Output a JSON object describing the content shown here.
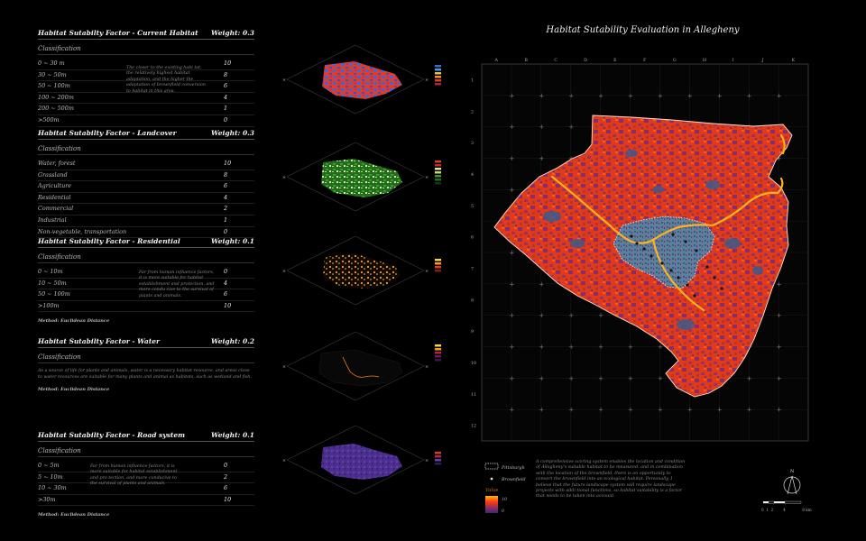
{
  "title": "Habitat Sutability Evaluation in Allegheny",
  "factors": [
    {
      "title": "Habitat Sutabilty Factor - Current Habitat",
      "weight": "Weight: 0.3",
      "classification": "Classification",
      "rows": [
        {
          "label": "0 ~ 30 m",
          "value": "10"
        },
        {
          "label": "30 ~ 50m",
          "value": "8"
        },
        {
          "label": "50 ~ 100m",
          "value": "6"
        },
        {
          "label": "100 ~ 200m",
          "value": "4"
        },
        {
          "label": "200 ~ 500m",
          "value": "1"
        },
        {
          "label": ">500m",
          "value": "0"
        }
      ],
      "description": "The closer to the existing habi tat, the relatively highest habitat adaptation, and the higher the adaptation of brownfield conversion to habitat in this area."
    },
    {
      "title": "Habitat Sutabilty Factor - Landcover",
      "weight": "Weight: 0.3",
      "classification": "Classification",
      "rows": [
        {
          "label": "Water, forest",
          "value": "10"
        },
        {
          "label": "Grassland",
          "value": "8"
        },
        {
          "label": "Agriculture",
          "value": "6"
        },
        {
          "label": "Residential",
          "value": "4"
        },
        {
          "label": "Commercial",
          "value": "2"
        },
        {
          "label": "Industrial",
          "value": "1"
        },
        {
          "label": "Non-vegetable, transportation",
          "value": "0"
        }
      ]
    },
    {
      "title": "Habitat Sutabilty Factor - Residential",
      "weight": "Weight: 0.1",
      "classification": "Classification",
      "rows": [
        {
          "label": "0 ~ 10m",
          "value": "0"
        },
        {
          "label": "10 ~ 50m",
          "value": "4"
        },
        {
          "label": "50 ~ 100m",
          "value": "6"
        },
        {
          "label": ">100m",
          "value": "10"
        }
      ],
      "description": "Far from human influence factors, it is more suitable for habitat establishment and protection, and more condu cive to the survival of plants and animals.",
      "method": "Method: Euclidean Distance"
    },
    {
      "title": "Habitat Sutabilty Factor - Water",
      "weight": "Weight: 0.2",
      "classification": "Classification",
      "paragraph": "As a source of life for plants and animals, water is a necessary habitat resource, and areas close to water resources are suitable for many plants and animal as habitats, such as wetland and fish.",
      "method": "Method: Euclidean Distance"
    },
    {
      "title": "Habitat Sutabilty Factor - Road system",
      "weight": "Weight: 0.1",
      "classification": "Classification",
      "rows": [
        {
          "label": "0 ~ 5m",
          "value": "0"
        },
        {
          "label": "5 ~ 10m",
          "value": "2"
        },
        {
          "label": "10 ~ 30m",
          "value": "6"
        },
        {
          "label": ">30m",
          "value": "10"
        }
      ],
      "description": "Far from human influence factors, it is more suitable for habitat establishment and pro tection, and more conducive to the survival of plants and animals.",
      "method": "Method: Euclidean Distance"
    }
  ],
  "grid": {
    "columns": [
      "A",
      "B",
      "C",
      "D",
      "E",
      "F",
      "G",
      "H",
      "I",
      "J",
      "K"
    ],
    "rows": [
      "1",
      "2",
      "3",
      "4",
      "5",
      "6",
      "7",
      "8",
      "9",
      "10",
      "11",
      "12"
    ]
  },
  "legend": {
    "pittsburgh": "Pittsburgh",
    "brownfield": "Brownfield",
    "value_title": "Value",
    "value_high": "10",
    "value_low": "0"
  },
  "bottom_text": "A comprehensive scoring system enables the location and condition of Allegheny's suitable habitat to be measured, and in combination with the location of the brownfield, there is an opportunity to convert the brownfield into an ecological habitat. Personally, I believe that the future landscape system will require landscape projects with addi tional functions, so habitat suitability is a factor that needs to be taken into account.",
  "north": "N",
  "scale_label": "0  1  2        4              8 km",
  "colors": {
    "high": "#ff3b0a",
    "mid": "#8a2c6a",
    "low": "#3e5a8a",
    "river": "#ffb21a"
  }
}
